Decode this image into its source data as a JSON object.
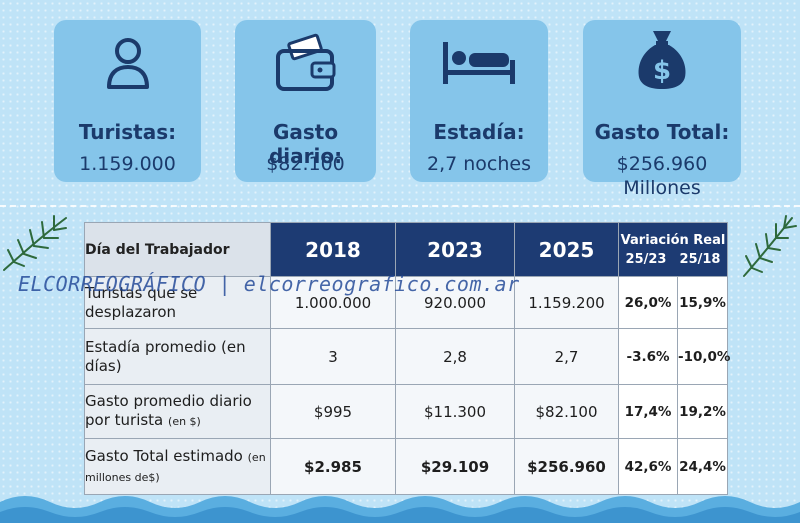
{
  "stats": [
    {
      "icon": "person-icon",
      "label": "Turistas:",
      "value": "1.159.000"
    },
    {
      "icon": "wallet-icon",
      "label": "Gasto diario:",
      "value": "$82.100"
    },
    {
      "icon": "bed-icon",
      "label": "Estadía:",
      "value": "2,7 noches"
    },
    {
      "icon": "money-bag-icon",
      "label": "Gasto Total:",
      "value": "$256.960",
      "value_line2": "Millones"
    }
  ],
  "table": {
    "corner_label": "Día del Trabajador",
    "years": [
      "2018",
      "2023",
      "2025"
    ],
    "variation_label": "Variación Real",
    "variation_sub": [
      "25/23",
      "25/18"
    ],
    "rows": [
      {
        "label": "Turistas que se desplazaron",
        "label_small": "",
        "values": [
          "1.000.000",
          "920.000",
          "1.159.200"
        ],
        "var": [
          "26,0%",
          "15,9%"
        ],
        "bold": false
      },
      {
        "label": "Estadía promedio (en días)",
        "label_small": "",
        "values": [
          "3",
          "2,8",
          "2,7"
        ],
        "var": [
          "-3.6%",
          "-10,0%"
        ],
        "bold": false
      },
      {
        "label": "Gasto promedio diario por turista",
        "label_small": "(en $)",
        "values": [
          "$995",
          "$11.300",
          "$82.100"
        ],
        "var": [
          "17,4%",
          "19,2%"
        ],
        "bold": false
      },
      {
        "label": "Gasto Total estimado",
        "label_small": "(en millones de$)",
        "values": [
          "$2.985",
          "$29.109",
          "$256.960"
        ],
        "var": [
          "42,6%",
          "24,4%"
        ],
        "bold": true
      }
    ]
  },
  "watermark": "ELCORREOGRÁFICO | elcorreografico.com.ar",
  "colors": {
    "card": "#85c5ea",
    "header": "#1d3b73",
    "text": "#1b3a6b",
    "background": "#bfe3f7"
  }
}
